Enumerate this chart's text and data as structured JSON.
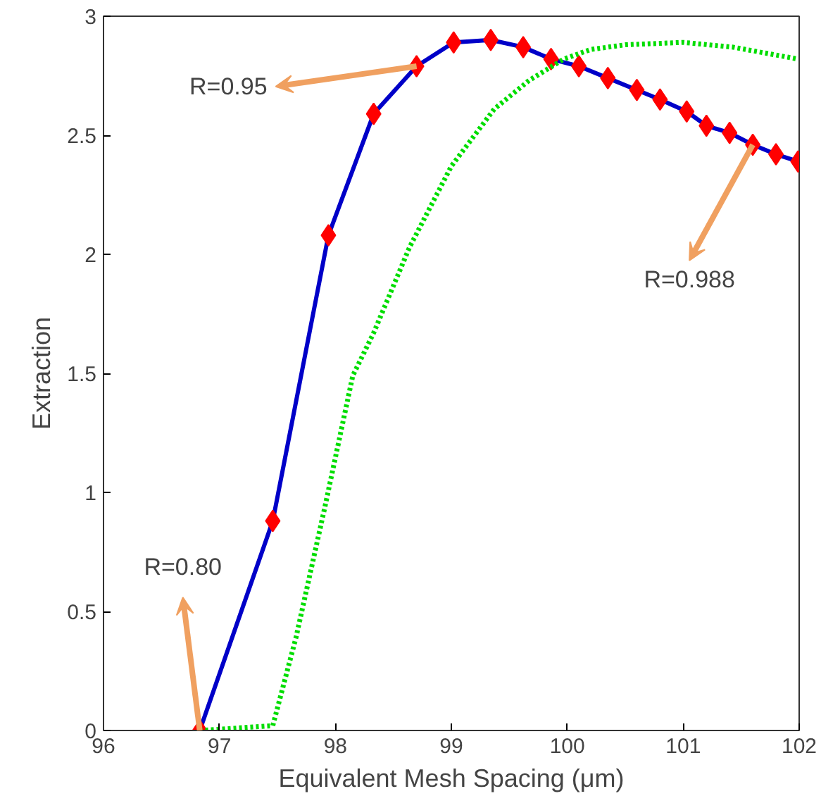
{
  "chart_data": {
    "type": "line",
    "xlabel": "Equivalent Mesh Spacing (μm)",
    "ylabel": "Extraction",
    "xlim": [
      96,
      102
    ],
    "ylim": [
      0,
      3
    ],
    "xticks": [
      96,
      97,
      98,
      99,
      100,
      101,
      102
    ],
    "yticks": [
      0,
      0.5,
      1,
      1.5,
      2,
      2.5,
      3
    ],
    "grid": false,
    "series": [
      {
        "color": "#0000c8",
        "marker": "diamond",
        "colors": [
          "#ff0000",
          "#ff0000",
          "#ff0000",
          "#ff0000",
          "#ff0000",
          "#ff0000",
          "#ff0000",
          "#ff0000",
          "#ff0000",
          "#ff0000",
          "#ff0000",
          "#ff0000",
          "#ff0000",
          "#ff0000",
          "#ff0000",
          "#ff0000",
          "#ff0000",
          "#ff0000",
          "#ff0000"
        ],
        "line_style": "solid",
        "x": [
          96.83,
          97.46,
          97.94,
          98.33,
          98.7,
          99.02,
          99.34,
          99.62,
          99.86,
          100.1,
          100.35,
          100.6,
          100.8,
          101.03,
          101.2,
          101.4,
          101.6,
          101.8,
          101.99
        ],
        "values": [
          0,
          0.88,
          2.08,
          2.59,
          2.79,
          2.89,
          2.9,
          2.87,
          2.82,
          2.79,
          2.74,
          2.69,
          2.65,
          2.6,
          2.54,
          2.51,
          2.46,
          2.42,
          2.39
        ]
      },
      {
        "color": "#00dd00",
        "marker": "none",
        "line_style": "dotted",
        "x": [
          96.83,
          97.46,
          97.66,
          97.91,
          98.15,
          98.33,
          98.64,
          99.0,
          99.37,
          99.67,
          99.97,
          100.2,
          100.5,
          101.0,
          101.43,
          101.99
        ],
        "values": [
          0,
          0.02,
          0.39,
          0.94,
          1.49,
          1.67,
          2.03,
          2.37,
          2.61,
          2.73,
          2.82,
          2.86,
          2.88,
          2.89,
          2.87,
          2.82
        ]
      }
    ],
    "annotations": [
      {
        "text": "R=0.95",
        "x": 98.7,
        "y": 2.79
      },
      {
        "text": "R=0.80",
        "x": 96.83,
        "y": 0
      },
      {
        "text": "R=0.988",
        "x": 101.6,
        "y": 2.46
      }
    ]
  }
}
